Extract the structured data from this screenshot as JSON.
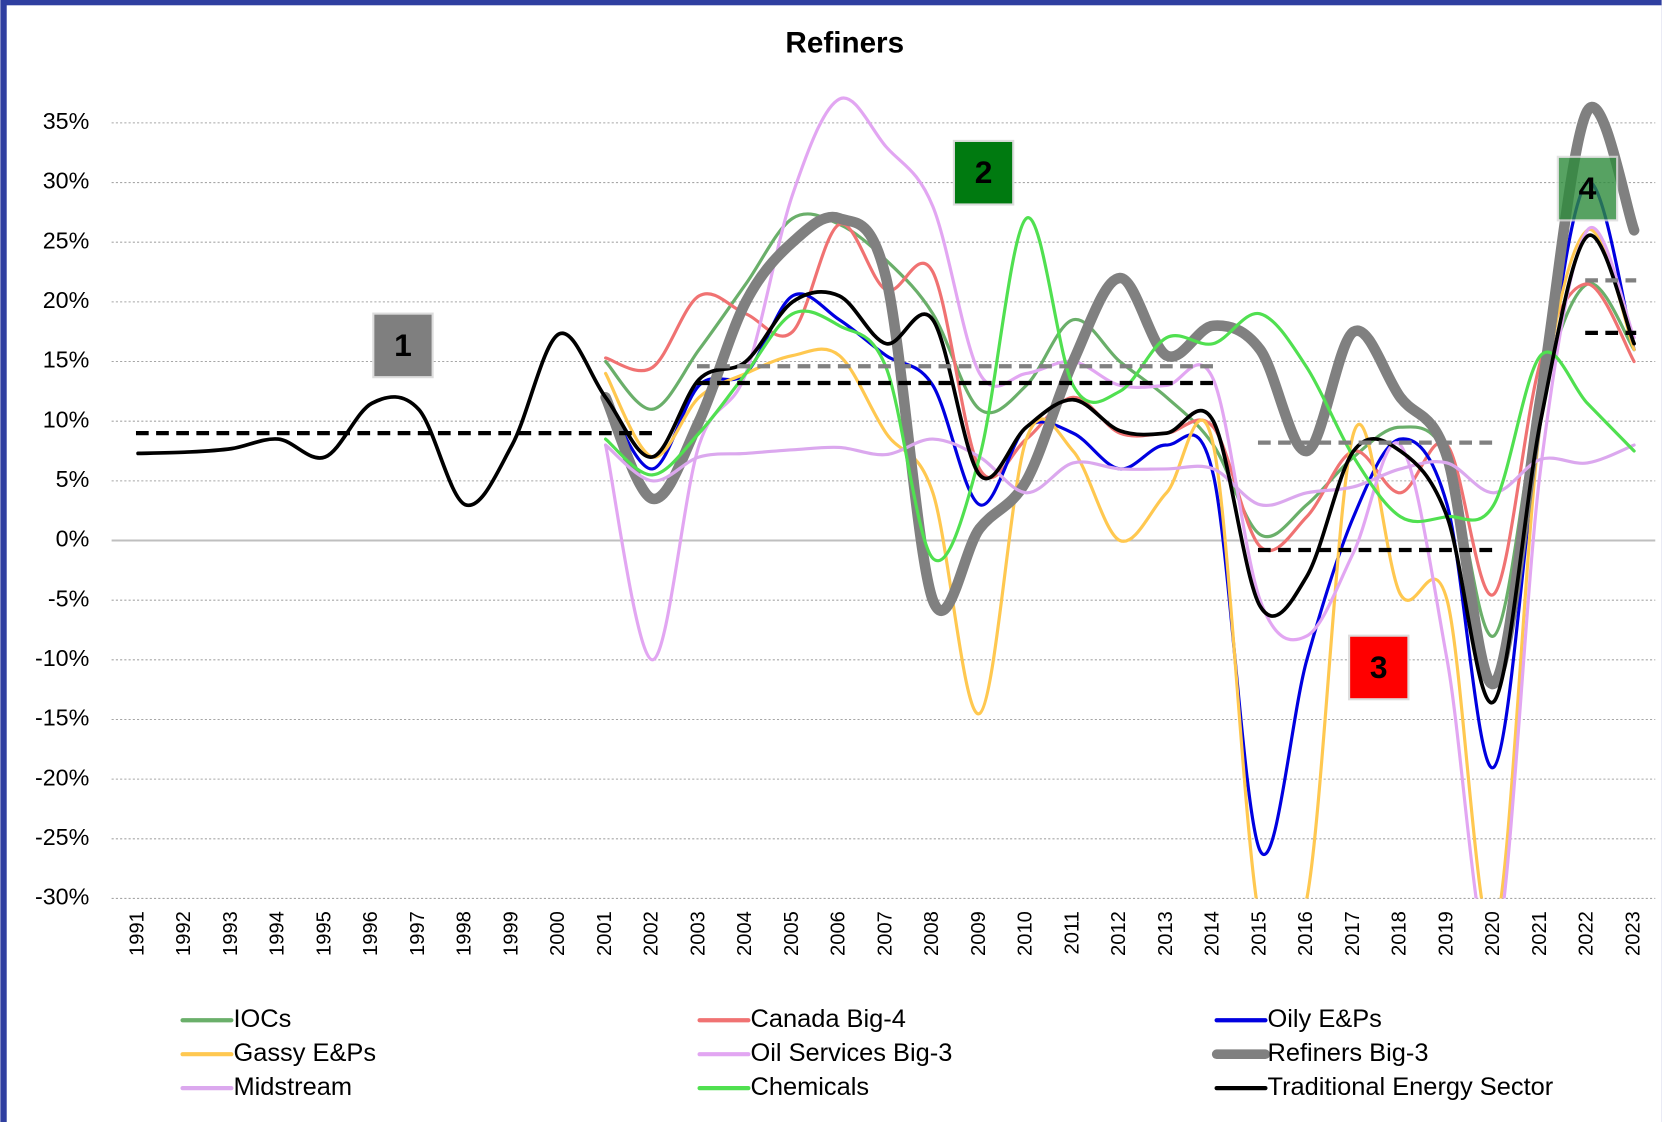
{
  "chart_data": {
    "type": "line",
    "title": "Refiners",
    "categories": [
      "1991",
      "1992",
      "1993",
      "1994",
      "1995",
      "1996",
      "1997",
      "1998",
      "1999",
      "2000",
      "2001",
      "2002",
      "2003",
      "2004",
      "2005",
      "2006",
      "2007",
      "2008",
      "2009",
      "2010",
      "2011",
      "2012",
      "2013",
      "2014",
      "2015",
      "2016",
      "2017",
      "2018",
      "2019",
      "2020",
      "2021",
      "2022",
      "2023"
    ],
    "ylim": [
      -30,
      35
    ],
    "yticks": [
      {
        "value": -30,
        "label": "-30%"
      },
      {
        "value": -25,
        "label": "-25%"
      },
      {
        "value": -20,
        "label": "-20%"
      },
      {
        "value": -15,
        "label": "-15%"
      },
      {
        "value": -10,
        "label": "-10%"
      },
      {
        "value": -5,
        "label": "-5%"
      },
      {
        "value": 0,
        "label": "0%"
      },
      {
        "value": 5,
        "label": "5%"
      },
      {
        "value": 10,
        "label": "10%"
      },
      {
        "value": 15,
        "label": "15%"
      },
      {
        "value": 20,
        "label": "20%"
      },
      {
        "value": 25,
        "label": "25%"
      },
      {
        "value": 30,
        "label": "30%"
      },
      {
        "value": 35,
        "label": "35%"
      }
    ],
    "grid": true,
    "legend": "bottom",
    "series": [
      {
        "name": "IOCs",
        "color": "#6aaf6a",
        "values": [
          null,
          null,
          null,
          null,
          null,
          null,
          null,
          null,
          null,
          null,
          15,
          11,
          16,
          21.5,
          27,
          26.5,
          23.5,
          19,
          11,
          13,
          18.5,
          15,
          12,
          8,
          0.5,
          3,
          7,
          9.5,
          7,
          -8,
          12,
          21.5,
          16
        ]
      },
      {
        "name": "Canada Big-4",
        "color": "#f07272",
        "values": [
          null,
          null,
          null,
          null,
          null,
          null,
          null,
          null,
          null,
          null,
          15.3,
          14.5,
          20.5,
          19,
          17.5,
          26.5,
          21,
          22.5,
          6,
          8.5,
          12,
          9,
          9,
          9.5,
          -0.5,
          2,
          7.5,
          4,
          8,
          -4.5,
          15,
          21.5,
          15
        ]
      },
      {
        "name": "Oily E&Ps",
        "color": "#0000e0",
        "values": [
          null,
          null,
          null,
          null,
          null,
          null,
          null,
          null,
          null,
          null,
          12,
          6,
          13,
          14,
          20.5,
          18.5,
          15.5,
          13,
          3,
          9.5,
          9,
          6,
          8,
          5.5,
          -26,
          -10,
          2,
          8.5,
          3,
          -19,
          10,
          30,
          16
        ]
      },
      {
        "name": "Gassy E&Ps",
        "color": "#ffc850",
        "values": [
          null,
          null,
          null,
          null,
          null,
          null,
          null,
          null,
          null,
          null,
          14,
          7,
          12,
          14,
          15.5,
          15.5,
          9,
          4,
          -14.5,
          8.5,
          7.5,
          0,
          4,
          8,
          -32,
          -30,
          9,
          -4.5,
          -5,
          -33,
          10,
          26,
          16
        ]
      },
      {
        "name": "Oil Services Big-3",
        "color": "#e2a6f2",
        "values": [
          null,
          null,
          null,
          null,
          null,
          null,
          null,
          null,
          null,
          null,
          8,
          -10,
          8,
          14,
          29,
          37,
          33,
          28,
          14,
          14,
          15,
          13,
          13,
          13.5,
          -5,
          -8,
          -1,
          8,
          -10,
          -35,
          6,
          26,
          17
        ]
      },
      {
        "name": "Refiners Big-3",
        "color": "#808080",
        "values": [
          null,
          null,
          null,
          null,
          null,
          null,
          null,
          null,
          null,
          null,
          12,
          3.5,
          10,
          20,
          25,
          27,
          22,
          -5,
          1,
          5,
          15,
          22,
          15.5,
          18,
          16,
          7.5,
          17.5,
          12,
          7,
          -12,
          12,
          36,
          26
        ]
      },
      {
        "name": "Midstream",
        "color": "#dba8ee",
        "values": [
          null,
          null,
          null,
          null,
          null,
          null,
          null,
          null,
          null,
          null,
          8,
          5,
          7,
          7.3,
          7.6,
          7.8,
          7.2,
          8.5,
          7,
          4,
          6.5,
          6,
          6,
          6,
          3,
          4,
          4.5,
          6,
          6.5,
          4,
          6.8,
          6.5,
          8
        ]
      },
      {
        "name": "Chemicals",
        "color": "#50e050",
        "values": [
          null,
          null,
          null,
          null,
          null,
          null,
          null,
          null,
          null,
          null,
          8.5,
          5.5,
          9,
          14,
          19,
          18,
          14.5,
          -1.5,
          7,
          27,
          13,
          12.5,
          17,
          16.5,
          19,
          14.5,
          7,
          2,
          2,
          3,
          15.5,
          11.5,
          7.5
        ]
      },
      {
        "name": "Traditional Energy Sector",
        "color": "#000000",
        "values": [
          7.3,
          7.4,
          7.7,
          8.5,
          7,
          11.5,
          11,
          3,
          8,
          17.3,
          12,
          7,
          13.5,
          15,
          20,
          20.5,
          16.5,
          18.5,
          5.5,
          9.5,
          11.8,
          9.2,
          9,
          10,
          -5.5,
          -3,
          7.5,
          7.5,
          2,
          -13.5,
          10,
          25.5,
          16.5
        ]
      }
    ],
    "reference_lines": [
      {
        "value": 9,
        "from": "1991",
        "to": "2002",
        "color": "#000000"
      },
      {
        "value": 14.6,
        "from": "2003",
        "to": "2014",
        "color": "#808080"
      },
      {
        "value": 13.2,
        "from": "2003",
        "to": "2014",
        "color": "#000000"
      },
      {
        "value": 8.2,
        "from": "2015",
        "to": "2020",
        "color": "#808080"
      },
      {
        "value": -0.8,
        "from": "2015",
        "to": "2020",
        "color": "#000000"
      },
      {
        "value": 21.8,
        "from": "2022",
        "to": "2023",
        "color": "#808080"
      },
      {
        "value": 17.4,
        "from": "2022",
        "to": "2023",
        "color": "#000000"
      }
    ],
    "annotations": [
      {
        "text": "1",
        "color": "#7f7f7f"
      },
      {
        "text": "2",
        "color": "#007a10"
      },
      {
        "text": "3",
        "color": "#ff0000"
      },
      {
        "text": "4",
        "color": "#2e8b3c"
      }
    ]
  }
}
